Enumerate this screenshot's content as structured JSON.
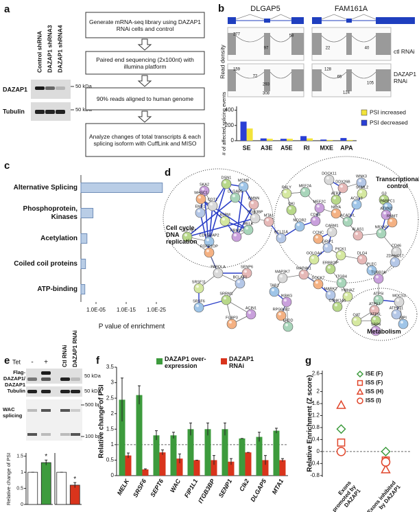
{
  "panel_labels": [
    "a",
    "b",
    "c",
    "d",
    "e",
    "f",
    "g"
  ],
  "blot_a": {
    "lanes": [
      "Control shRNA",
      "DAZAP1 shRNA3",
      "DAZAP1 shRNA4"
    ],
    "proteins": [
      "DAZAP1",
      "Tubulin"
    ],
    "markers": [
      "50 kDa",
      "50 kDa"
    ]
  },
  "flowchart": {
    "steps": [
      "Generate mRNA-seq library using DAZAP1 RNAi cells and control",
      "Paired end sequencing (2x100nt) with illumina platform",
      "90% reads aligned to human genome",
      "Analyze changes of total transcripts & each splicing isoform with CuffLink and MISO"
    ]
  },
  "gene_tracks": {
    "genes": [
      "DLGAP5",
      "FAM161A"
    ],
    "ylabel": "Read density",
    "conditions": [
      "ctl RNAi",
      "DAZAP1 RNAi"
    ],
    "counts": [
      [
        [
          277,
          97,
          58
        ],
        [
          159,
          72,
          293,
          308
        ]
      ],
      [
        [
          22,
          40
        ],
        [
          128,
          65,
          105,
          124
        ]
      ]
    ]
  },
  "network": {
    "clusters": [
      "Cell cycle, DNA replication",
      "Transcriptional control",
      "Metabolism"
    ],
    "nodes": [
      "DSN1",
      "MCM9",
      "SKA2",
      "WHSC1",
      "DLGAP5",
      "CDT1",
      "GMNN",
      "EME1",
      "ASPM",
      "CEP78",
      "CDK5RAP2",
      "RBM15",
      "FGFR1OP",
      "MELK",
      "ITGB3BP",
      "MTA1",
      "BCL11A",
      "RALY",
      "QKI",
      "NCOR2",
      "CDK8",
      "CCNC",
      "MEF2A",
      "DOCK11",
      "DDX26B",
      "WNK3",
      "SCML2",
      "ATRX",
      "ACSL3",
      "MEF2C",
      "NFYA",
      "ACADVL",
      "CARM1",
      "ALAS1",
      "GRIP1",
      "PICK1",
      "G3",
      "PABPC1",
      "ATXN2",
      "RNMT",
      "NRXN3",
      "CD46",
      "DLG4",
      "ZDHHC17",
      "GOLGA4",
      "ERBB2IP",
      "PLEC",
      "TUBB2A",
      "DOCK7",
      "ITGB4",
      "MAP3K7",
      "MAP4K1",
      "MARK2",
      "YWHAZ",
      "CSNK1A1",
      "TAB1",
      "IKBKG",
      "RPS6KB2",
      "LRDD",
      "PAPOLA",
      "SENP6",
      "BCLAF1",
      "SRSF11",
      "SRRM1",
      "SRSF6",
      "ACIN1",
      "FUBP3",
      "ATP5I",
      "MOCS3",
      "ATP5J",
      "ATP5C1",
      "OAT",
      "ATP5L",
      "MPI",
      "SRP9"
    ]
  },
  "blot_e": {
    "treatment": "Tet",
    "tet_states": [
      "-",
      "+"
    ],
    "lanes": [
      "Ctl RNAi",
      "DAZAP1 RNAi"
    ],
    "proteins": [
      "Flag-DAZAP1/ DAZAP1",
      "Tubulin"
    ],
    "markers": [
      "50 kDa",
      "50 kDa"
    ],
    "assay": "WAC splicing",
    "sizes": [
      "500 bp",
      "100 bp"
    ]
  },
  "chart_data": [
    {
      "type": "bar",
      "ylabel": "# of affected splicing events",
      "categories": [
        "SE",
        "A3E",
        "A5E",
        "RI",
        "MXE",
        "APA"
      ],
      "series": [
        {
          "name": "PSI increased",
          "color": "#f2e33a",
          "values": [
            160,
            25,
            25,
            30,
            10,
            10
          ]
        },
        {
          "name": "PSI decreased",
          "color": "#2a3fd4",
          "values": [
            250,
            30,
            25,
            60,
            15,
            35
          ]
        }
      ],
      "ylim": [
        0,
        450
      ],
      "yticks": [
        0,
        200,
        400
      ]
    },
    {
      "type": "hbar",
      "xlabel": "P value of enrichment",
      "categories": [
        "Alternative Splicing",
        "Phosphoprotein, Kinases",
        "Acetylation",
        "Coiled coil proteins",
        "ATP-binding"
      ],
      "values": [
        1e-27,
        0.0001,
        0.01,
        0.03,
        0.05
      ],
      "color": "#b9cde6",
      "xscale": "log",
      "xlim": [
        1,
        1e-30
      ],
      "xticks": [
        {
          "value": 1e-05,
          "label": "1.0E-05"
        },
        {
          "value": 1e-15,
          "label": "1.0E-15"
        },
        {
          "value": 1e-25,
          "label": "1.0E-25"
        }
      ]
    },
    {
      "type": "bar",
      "ylabel": "Relative change of PSI",
      "categories": [
        null,
        null
      ],
      "values": [
        1,
        1.3
      ],
      "errors": [
        0,
        0.08
      ],
      "colors": [
        "#ffffff",
        "#3d9b3d"
      ],
      "value_annotations": [
        null,
        "*"
      ],
      "ylim": [
        0,
        1.6
      ],
      "yticks": [
        0,
        0.5,
        1,
        1.5
      ]
    },
    {
      "type": "bar",
      "categories": [
        null,
        null
      ],
      "values": [
        1,
        0.6
      ],
      "errors": [
        0,
        0.08
      ],
      "colors": [
        "#ffffff",
        "#d9341c"
      ],
      "value_annotations": [
        null,
        "*"
      ],
      "ylim": [
        0,
        1.6
      ]
    },
    {
      "type": "bar",
      "ylabel": "Relative change of PSI",
      "categories": [
        "MELK",
        "SRSF6",
        "SEPT6",
        "WAC",
        "FIP1L1",
        "ITGB3BP",
        "SENP1",
        "Clk2",
        "DLGAP5",
        "MTA1"
      ],
      "series": [
        {
          "name": "DAZAP1 over-expression",
          "color": "#3d9b3d",
          "values": [
            2.45,
            2.6,
            1.3,
            1.3,
            1.5,
            1.5,
            1.5,
            1.2,
            1.25,
            1.45
          ],
          "errors": [
            0.7,
            0.3,
            0.15,
            0.1,
            0.2,
            0.2,
            0.2,
            0,
            0.15,
            0.08
          ]
        },
        {
          "name": "DAZAP1 RNAi",
          "color": "#d9341c",
          "values": [
            0.65,
            0.2,
            0.75,
            0.55,
            0.5,
            0.5,
            0.45,
            0.75,
            0.5,
            0.5
          ],
          "errors": [
            0.08,
            0.02,
            0.08,
            0.15,
            0,
            0.15,
            0.1,
            0,
            0.15,
            0.05
          ]
        }
      ],
      "ylim": [
        0,
        3.5
      ],
      "yticks": [
        0,
        0.5,
        1,
        1.5,
        2,
        2.5,
        3,
        3.5
      ],
      "hline": 1
    },
    {
      "type": "scatter",
      "ylabel": "Relative Enrichment (Z score)",
      "categories": [
        "Exons promoted by DAZAP1",
        "Exons inhibited by DAZAP1"
      ],
      "series": [
        {
          "name": "ISE (F)",
          "color": "#3d9b3d",
          "marker": "diamond",
          "values": [
            0.75,
            0
          ]
        },
        {
          "name": "ISS (F)",
          "color": "#e0452a",
          "marker": "square",
          "values": [
            0.3,
            -0.3
          ]
        },
        {
          "name": "ISS (H)",
          "color": "#e0452a",
          "marker": "triangle",
          "values": [
            1.55,
            -0.6
          ]
        },
        {
          "name": "ISS (I)",
          "color": "#e0452a",
          "marker": "circle",
          "values": [
            0,
            -0.35
          ]
        }
      ],
      "ylim": [
        -0.85,
        2.7
      ],
      "yticks": [
        -0.8,
        -0.4,
        0,
        0.4,
        0.8,
        1.2,
        1.6,
        2,
        2.6
      ],
      "hline": 0
    }
  ]
}
